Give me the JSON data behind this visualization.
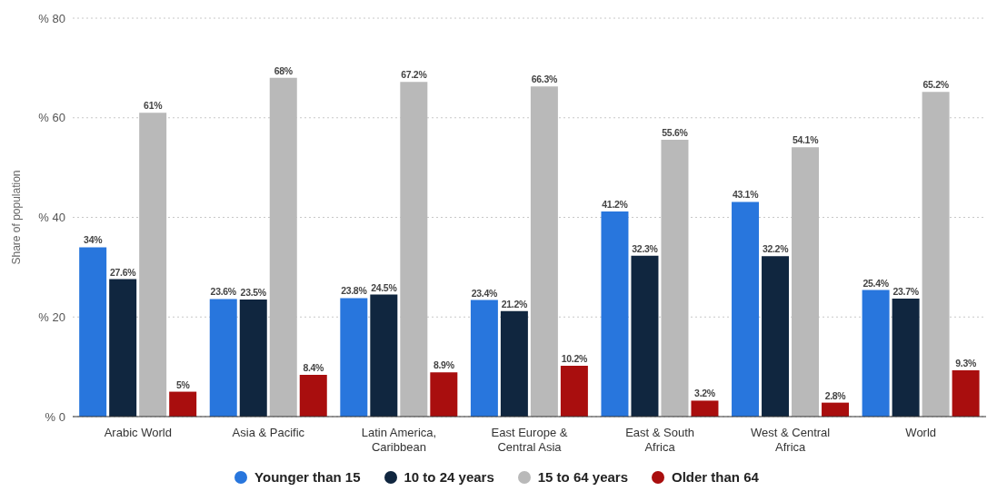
{
  "chart_data": {
    "type": "bar",
    "ylabel": "Share of population",
    "categories": [
      "Arabic World",
      "Asia & Pacific",
      "Latin America, Caribbean",
      "East Europe & Central Asia",
      "East & South Africa",
      "West & Central Africa",
      "World"
    ],
    "series": [
      {
        "name": "Younger than 15",
        "color": "#2876dd",
        "values": [
          34,
          23.6,
          23.8,
          23.4,
          41.2,
          43.1,
          25.4
        ],
        "value_labels": [
          "34%",
          "23.6%",
          "23.8%",
          "23.4%",
          "41.2%",
          "43.1%",
          "25.4%"
        ]
      },
      {
        "name": "10 to 24 years",
        "color": "#10263f",
        "values": [
          27.6,
          23.5,
          24.5,
          21.2,
          32.3,
          32.2,
          23.7
        ],
        "value_labels": [
          "27.6%",
          "23.5%",
          "24.5%",
          "21.2%",
          "32.3%",
          "32.2%",
          "23.7%"
        ]
      },
      {
        "name": "15 to 64 years",
        "color": "#b9b9b9",
        "values": [
          61,
          68,
          67.2,
          66.3,
          55.6,
          54.1,
          65.2
        ],
        "value_labels": [
          "61%",
          "68%",
          "67.2%",
          "66.3%",
          "55.6%",
          "54.1%",
          "65.2%"
        ]
      },
      {
        "name": "Older than 64",
        "color": "#a90e0e",
        "values": [
          5,
          8.4,
          8.9,
          10.2,
          3.2,
          2.8,
          9.3
        ],
        "value_labels": [
          "5%",
          "8.4%",
          "8.9%",
          "10.2%",
          "3.2%",
          "2.8%",
          "9.3%"
        ]
      }
    ],
    "ylim": [
      0,
      80
    ],
    "yticks": [
      {
        "value": 0,
        "label": "% 0"
      },
      {
        "value": 20,
        "label": "% 20"
      },
      {
        "value": 40,
        "label": "% 40"
      },
      {
        "value": 60,
        "label": "% 60"
      },
      {
        "value": 80,
        "label": "% 80"
      }
    ],
    "grid": "y",
    "legend": "bottom"
  }
}
